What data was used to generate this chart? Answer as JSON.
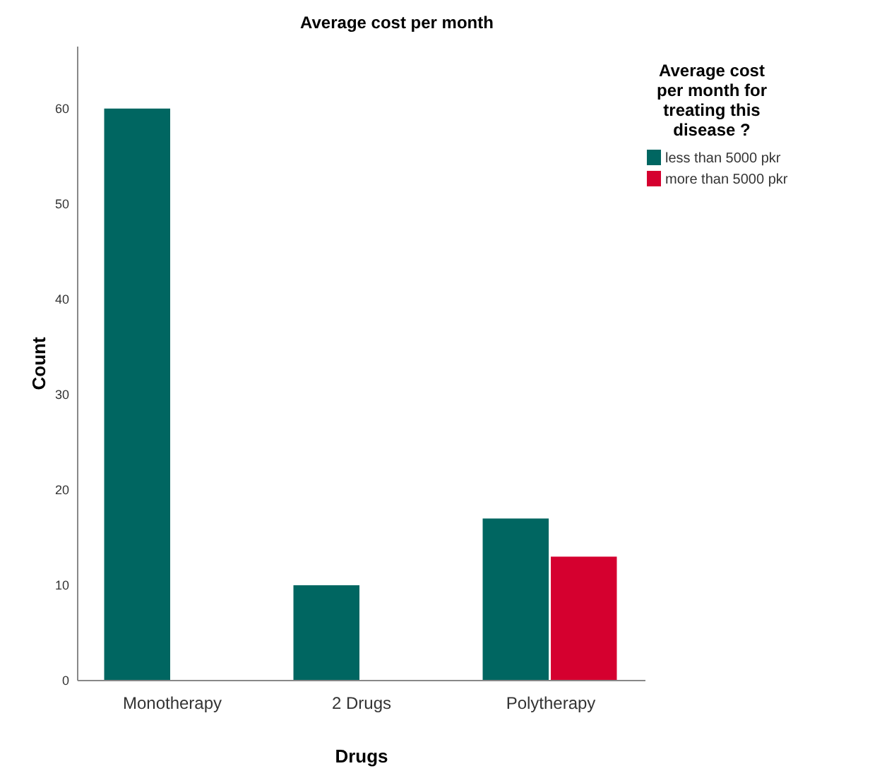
{
  "chart_data": {
    "type": "bar",
    "title": "Average cost per month",
    "xlabel": "Drugs",
    "ylabel": "Count",
    "legend_title": "Average cost per month for treating this disease ?",
    "categories": [
      "Monotherapy",
      "2 Drugs",
      "Polytherapy"
    ],
    "series": [
      {
        "name": "less than 5000 pkr",
        "color": "#006661",
        "values": [
          60,
          10,
          17
        ]
      },
      {
        "name": "more than 5000 pkr",
        "color": "#d5002f",
        "values": [
          null,
          null,
          13
        ]
      }
    ],
    "ylim": [
      0,
      66.5
    ],
    "yticks": [
      0,
      10,
      20,
      30,
      40,
      50,
      60
    ],
    "grid": false,
    "legend": "top right"
  }
}
